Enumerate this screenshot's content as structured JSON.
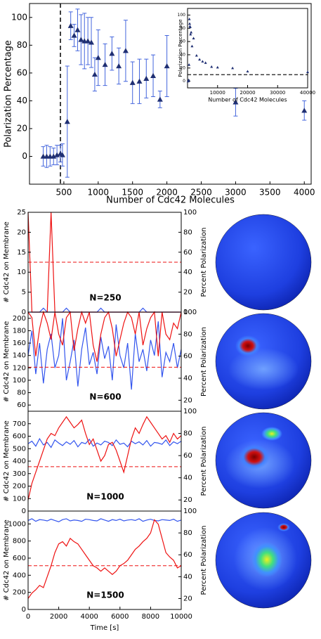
{
  "chart_data": [
    {
      "type": "errorbar",
      "xlabel": "Number of Cdc42 Molecules",
      "ylabel": "Polarization Percentage",
      "x": [
        200,
        250,
        300,
        350,
        400,
        450,
        480,
        550,
        600,
        650,
        700,
        750,
        800,
        850,
        900,
        950,
        1000,
        1100,
        1200,
        1300,
        1400,
        1500,
        1600,
        1700,
        1800,
        1900,
        2000,
        3000,
        4000
      ],
      "values": [
        0,
        0,
        0,
        0,
        1,
        2,
        1,
        25,
        94,
        87,
        91,
        84,
        83,
        83,
        82,
        59,
        71,
        66,
        74,
        65,
        76,
        53,
        54,
        56,
        58,
        41,
        65,
        39,
        33
      ],
      "errors": [
        7,
        8,
        7,
        6,
        7,
        6,
        8,
        40,
        10,
        8,
        15,
        18,
        20,
        17,
        18,
        12,
        20,
        15,
        12,
        13,
        22,
        15,
        16,
        14,
        15,
        6,
        22,
        10,
        7
      ],
      "color": "#1f2f73",
      "error_color": "#4466dd",
      "vline": 450,
      "xlim": [
        0,
        4100
      ],
      "ylim": [
        -20,
        110
      ],
      "xticks": [
        500,
        1000,
        1500,
        2000,
        2500,
        3000,
        3500,
        4000
      ],
      "yticks": [
        0,
        20,
        40,
        60,
        80,
        100
      ]
    },
    {
      "type": "scatter",
      "xlabel": "Number of Cdc42 Molecules",
      "ylabel": "Polarization Percentage",
      "x": [
        200,
        300,
        400,
        500,
        600,
        700,
        800,
        900,
        1000,
        1200,
        1500,
        2000,
        3000,
        4000,
        5000,
        6000,
        8000,
        10000,
        15000,
        20000,
        40000
      ],
      "values": [
        0,
        1,
        2,
        25,
        94,
        87,
        83,
        82,
        71,
        74,
        53,
        65,
        39,
        33,
        30,
        28,
        22,
        21,
        20,
        15,
        14
      ],
      "color": "#1f2f73",
      "hline": 10,
      "xlim": [
        0,
        40000
      ],
      "ylim": [
        -10,
        110
      ],
      "xticks": [
        10000,
        20000,
        30000,
        40000
      ],
      "yticks": [
        0,
        20,
        40,
        60,
        80,
        100
      ]
    },
    {
      "type": "dual-line",
      "title": "N=250",
      "ylabel": "# Cdc42 on Membrane",
      "y2label": "Percent Polarization",
      "x": [
        0,
        250,
        500,
        750,
        1000,
        1250,
        1500,
        1750,
        2000,
        2250,
        2500,
        2750,
        3000,
        3250,
        3500,
        3750,
        4000,
        4250,
        4500,
        4750,
        5000,
        5250,
        5500,
        5750,
        6000,
        6250,
        6500,
        6750,
        7000,
        7250,
        7500,
        7750,
        8000,
        8250,
        8500,
        8750,
        9000,
        9250,
        9500,
        9750,
        10000
      ],
      "series": [
        {
          "name": "# Cdc42 on Membrane",
          "color": "#3355ee",
          "values": [
            0,
            0,
            0,
            0,
            1,
            0,
            0,
            0,
            0,
            0,
            1,
            0,
            0,
            0,
            0,
            0,
            0,
            0,
            0,
            1,
            0,
            0,
            0,
            0,
            0,
            0,
            0,
            0,
            0,
            0,
            1,
            0,
            0,
            0,
            0,
            0,
            0,
            0,
            0,
            0,
            0
          ]
        },
        {
          "name": "Percent Polarization",
          "color": "#ee1111",
          "axis": "y2",
          "values": [
            100,
            0,
            0,
            0,
            0,
            0,
            100,
            0,
            0,
            0,
            0,
            0,
            0,
            0,
            0,
            0,
            0,
            0,
            0,
            0,
            0,
            0,
            0,
            0,
            0,
            0,
            0,
            0,
            0,
            0,
            0,
            0,
            0,
            0,
            0,
            0,
            0,
            0,
            0,
            0,
            0
          ]
        }
      ],
      "reference": 50,
      "xlim": [
        0,
        10000
      ],
      "ylim": [
        0,
        25
      ],
      "yticks": [
        0,
        5,
        10,
        15,
        20,
        25
      ],
      "y2lim": [
        0,
        100
      ],
      "y2ticks": [
        0,
        20,
        40,
        60,
        80,
        100
      ]
    },
    {
      "type": "dual-line",
      "title": "N=600",
      "ylabel": "# Cdc42 on Membrane",
      "y2label": "Percent Polarization",
      "x": [
        0,
        250,
        500,
        750,
        1000,
        1250,
        1500,
        1750,
        2000,
        2250,
        2500,
        2750,
        3000,
        3250,
        3500,
        3750,
        4000,
        4250,
        4500,
        4750,
        5000,
        5250,
        5500,
        5750,
        6000,
        6250,
        6500,
        6750,
        7000,
        7250,
        7500,
        7750,
        8000,
        8250,
        8500,
        8750,
        9000,
        9250,
        9500,
        9750,
        10000
      ],
      "series": [
        {
          "name": "# Cdc42 on Membrane",
          "color": "#3355ee",
          "values": [
            140,
            180,
            110,
            160,
            95,
            150,
            175,
            120,
            140,
            200,
            100,
            130,
            165,
            90,
            150,
            185,
            125,
            145,
            110,
            170,
            135,
            155,
            100,
            190,
            140,
            120,
            160,
            85,
            175,
            130,
            150,
            115,
            165,
            140,
            195,
            105,
            145,
            130,
            160,
            120,
            150
          ]
        },
        {
          "name": "Percent Polarization",
          "color": "#ee1111",
          "axis": "y2",
          "values": [
            100,
            95,
            60,
            85,
            100,
            90,
            75,
            100,
            80,
            70,
            95,
            100,
            65,
            85,
            100,
            90,
            100,
            70,
            55,
            80,
            95,
            100,
            85,
            60,
            75,
            90,
            100,
            95,
            80,
            100,
            70,
            85,
            95,
            100,
            60,
            100,
            80,
            75,
            90,
            85,
            100
          ]
        }
      ],
      "reference": 50,
      "xlim": [
        0,
        10000
      ],
      "ylim": [
        50,
        210
      ],
      "yticks": [
        60,
        80,
        100,
        120,
        140,
        160,
        180,
        200
      ],
      "y2lim": [
        10,
        100
      ],
      "y2ticks": [
        20,
        40,
        60,
        80,
        100
      ]
    },
    {
      "type": "dual-line",
      "title": "N=1000",
      "ylabel": "# Cdc42 on Membrane",
      "y2label": "Percent Polarization",
      "x": [
        0,
        250,
        500,
        750,
        1000,
        1250,
        1500,
        1750,
        2000,
        2250,
        2500,
        2750,
        3000,
        3250,
        3500,
        3750,
        4000,
        4250,
        4500,
        4750,
        5000,
        5250,
        5500,
        5750,
        6000,
        6250,
        6500,
        6750,
        7000,
        7250,
        7500,
        7750,
        8000,
        8250,
        8500,
        8750,
        9000,
        9250,
        9500,
        9750,
        10000
      ],
      "series": [
        {
          "name": "# Cdc42 on Membrane",
          "color": "#3355ee",
          "values": [
            540,
            560,
            520,
            580,
            530,
            550,
            510,
            570,
            545,
            525,
            555,
            535,
            565,
            515,
            550,
            540,
            575,
            520,
            545,
            530,
            560,
            550,
            525,
            570,
            535,
            545,
            515,
            560,
            540,
            555,
            530,
            565,
            520,
            550,
            545,
            535,
            570,
            525,
            555,
            540,
            560
          ]
        },
        {
          "name": "Percent Polarization",
          "color": "#ee1111",
          "axis": "y2",
          "values": [
            20,
            35,
            45,
            55,
            65,
            75,
            80,
            78,
            85,
            90,
            95,
            90,
            85,
            88,
            92,
            80,
            70,
            75,
            65,
            55,
            60,
            70,
            72,
            65,
            55,
            45,
            60,
            75,
            85,
            80,
            88,
            95,
            90,
            85,
            80,
            75,
            78,
            72,
            80,
            75,
            78
          ]
        }
      ],
      "reference": 50,
      "xlim": [
        0,
        10000
      ],
      "ylim": [
        0,
        800
      ],
      "yticks": [
        0,
        100,
        200,
        300,
        400,
        500,
        600,
        700
      ],
      "y2lim": [
        10,
        100
      ],
      "y2ticks": [
        20,
        40,
        60,
        80,
        100
      ]
    },
    {
      "type": "dual-line",
      "title": "N=1500",
      "ylabel": "# Cdc42 on Membrane",
      "y2label": "Percent Polarization",
      "xlabel": "Time [s]",
      "x": [
        0,
        250,
        500,
        750,
        1000,
        1250,
        1500,
        1750,
        2000,
        2250,
        2500,
        2750,
        3000,
        3250,
        3500,
        3750,
        4000,
        4250,
        4500,
        4750,
        5000,
        5250,
        5500,
        5750,
        6000,
        6250,
        6500,
        6750,
        7000,
        7250,
        7500,
        7750,
        8000,
        8250,
        8500,
        8750,
        9000,
        9250,
        9500,
        9750,
        10000
      ],
      "series": [
        {
          "name": "# Cdc42 on Membrane",
          "color": "#3355ee",
          "values": [
            1040,
            1060,
            1030,
            1050,
            1045,
            1035,
            1055,
            1040,
            1025,
            1050,
            1060,
            1035,
            1045,
            1040,
            1030,
            1055,
            1050,
            1040,
            1035,
            1060,
            1045,
            1030,
            1050,
            1040,
            1055,
            1035,
            1045,
            1050,
            1040,
            1060,
            1030,
            1045,
            1055,
            1040,
            1035,
            1050,
            1045,
            1040,
            1055,
            1030,
            1045
          ]
        },
        {
          "name": "Percent Polarization",
          "color": "#ee1111",
          "axis": "y2",
          "values": [
            20,
            25,
            28,
            32,
            30,
            40,
            50,
            62,
            70,
            72,
            68,
            75,
            72,
            70,
            65,
            60,
            55,
            50,
            48,
            45,
            48,
            45,
            42,
            45,
            50,
            52,
            55,
            60,
            65,
            68,
            72,
            75,
            80,
            92,
            88,
            75,
            62,
            58,
            55,
            48,
            50
          ]
        }
      ],
      "reference": 50,
      "xlim": [
        0,
        10000
      ],
      "xticks": [
        0,
        2000,
        4000,
        6000,
        8000,
        10000
      ],
      "ylim": [
        0,
        1150
      ],
      "yticks": [
        0,
        200,
        400,
        600,
        800,
        1000
      ],
      "y2lim": [
        10,
        100
      ],
      "y2ticks": [
        20,
        40,
        60,
        80,
        100
      ]
    }
  ]
}
